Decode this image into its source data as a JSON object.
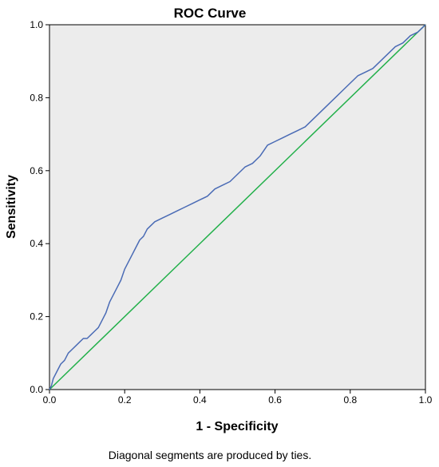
{
  "chart_data": {
    "type": "line",
    "title": "ROC Curve",
    "xlabel": "1 - Specificity",
    "ylabel": "Sensitivity",
    "xlim": [
      0.0,
      1.0
    ],
    "ylim": [
      0.0,
      1.0
    ],
    "x_ticks": [
      "0.0",
      "0.2",
      "0.4",
      "0.6",
      "0.8",
      "1.0"
    ],
    "y_ticks": [
      "0.0",
      "0.2",
      "0.4",
      "0.6",
      "0.8",
      "1.0"
    ],
    "grid": false,
    "background_color": "#ececec",
    "footnote": "Diagonal segments are produced by ties.",
    "series": [
      {
        "color": "#4a6bb5",
        "x": [
          0.0,
          0.005,
          0.01,
          0.02,
          0.03,
          0.04,
          0.05,
          0.06,
          0.07,
          0.08,
          0.09,
          0.1,
          0.11,
          0.12,
          0.13,
          0.14,
          0.15,
          0.16,
          0.17,
          0.18,
          0.19,
          0.2,
          0.21,
          0.22,
          0.23,
          0.24,
          0.25,
          0.26,
          0.28,
          0.3,
          0.32,
          0.34,
          0.36,
          0.38,
          0.4,
          0.42,
          0.44,
          0.46,
          0.48,
          0.5,
          0.52,
          0.54,
          0.56,
          0.58,
          0.6,
          0.62,
          0.64,
          0.66,
          0.68,
          0.7,
          0.72,
          0.74,
          0.76,
          0.78,
          0.8,
          0.82,
          0.84,
          0.86,
          0.88,
          0.9,
          0.92,
          0.94,
          0.96,
          0.98,
          0.99,
          1.0
        ],
        "y": [
          0.0,
          0.01,
          0.03,
          0.05,
          0.07,
          0.08,
          0.1,
          0.11,
          0.12,
          0.13,
          0.14,
          0.14,
          0.15,
          0.16,
          0.17,
          0.19,
          0.21,
          0.24,
          0.26,
          0.28,
          0.3,
          0.33,
          0.35,
          0.37,
          0.39,
          0.41,
          0.42,
          0.44,
          0.46,
          0.47,
          0.48,
          0.49,
          0.5,
          0.51,
          0.52,
          0.53,
          0.55,
          0.56,
          0.57,
          0.59,
          0.61,
          0.62,
          0.64,
          0.67,
          0.68,
          0.69,
          0.7,
          0.71,
          0.72,
          0.74,
          0.76,
          0.78,
          0.8,
          0.82,
          0.84,
          0.86,
          0.87,
          0.88,
          0.9,
          0.92,
          0.94,
          0.95,
          0.97,
          0.98,
          0.99,
          1.0
        ]
      },
      {
        "color": "#22b04a",
        "x": [
          0.0,
          1.0
        ],
        "y": [
          0.0,
          1.0
        ]
      }
    ]
  }
}
